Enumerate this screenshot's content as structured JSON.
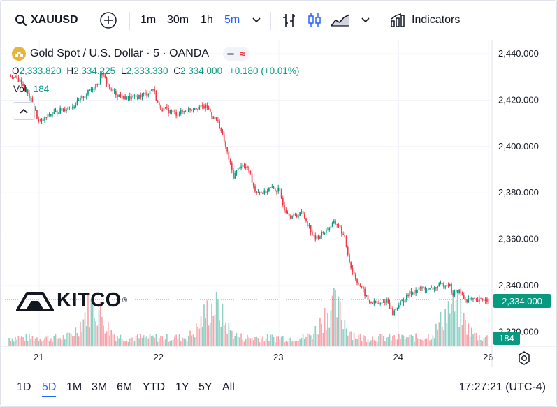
{
  "toolbar": {
    "symbol": "XAUUSD",
    "intervals": [
      "1m",
      "30m",
      "1h",
      "5m"
    ],
    "active_interval": "5m",
    "indicators_label": "Indicators",
    "icons": [
      "search-icon",
      "add-symbol-icon",
      "chevron-down-icon",
      "bar-chart-icon",
      "candle-chart-icon",
      "area-chart-icon",
      "indicators-icon"
    ]
  },
  "legend": {
    "title": "Gold Spot / U.S. Dollar · 5 · OANDA",
    "ohlc": {
      "o_key": "O",
      "o_val": "2,333.820",
      "h_key": "H",
      "h_val": "2,334.225",
      "l_key": "L",
      "l_val": "2,333.330",
      "c_key": "C",
      "c_val": "2,334.000",
      "change": "+0.180 (+0.01%)"
    },
    "vol_label": "Vol",
    "vol_value": "184"
  },
  "branding": {
    "logo_text": "KITCO",
    "logo_mark": "®"
  },
  "price_tag": "2,334.000",
  "volume_tag": "184",
  "chart_data": {
    "type": "candlestick",
    "title": "Gold Spot / U.S. Dollar · 5 · OANDA",
    "y_ticks": [
      "2,440.000",
      "2,420.000",
      "2,400.000",
      "2,380.000",
      "2,360.000",
      "2,340.000",
      "2,320.000"
    ],
    "y_tick_values": [
      2440,
      2420,
      2400,
      2380,
      2360,
      2340,
      2320
    ],
    "x_ticks": [
      "21",
      "22",
      "23",
      "24",
      "26"
    ],
    "x_tick_positions": [
      0.0,
      1.0,
      2.0,
      3.0,
      3.75
    ],
    "ylim": [
      2314,
      2458
    ],
    "current_price": 2334.0,
    "up_color": "#089981",
    "down_color": "#f23645",
    "series": [
      {
        "name": "price",
        "points": [
          [
            -0.25,
            2431
          ],
          [
            -0.15,
            2428
          ],
          [
            -0.05,
            2418
          ],
          [
            0.0,
            2410
          ],
          [
            0.1,
            2414
          ],
          [
            0.2,
            2416
          ],
          [
            0.3,
            2418
          ],
          [
            0.4,
            2423
          ],
          [
            0.5,
            2428
          ],
          [
            0.52,
            2432
          ],
          [
            0.6,
            2424
          ],
          [
            0.7,
            2421
          ],
          [
            0.8,
            2421
          ],
          [
            0.9,
            2423
          ],
          [
            0.95,
            2425
          ],
          [
            1.0,
            2417
          ],
          [
            1.05,
            2416
          ],
          [
            1.15,
            2414
          ],
          [
            1.3,
            2417
          ],
          [
            1.4,
            2417
          ],
          [
            1.45,
            2413
          ],
          [
            1.5,
            2410
          ],
          [
            1.58,
            2395
          ],
          [
            1.62,
            2387
          ],
          [
            1.68,
            2392
          ],
          [
            1.75,
            2390
          ],
          [
            1.8,
            2381
          ],
          [
            1.88,
            2380
          ],
          [
            1.92,
            2382
          ],
          [
            2.0,
            2381
          ],
          [
            2.05,
            2373
          ],
          [
            2.1,
            2370
          ],
          [
            2.15,
            2370
          ],
          [
            2.18,
            2372
          ],
          [
            2.22,
            2369
          ],
          [
            2.3,
            2360
          ],
          [
            2.4,
            2364
          ],
          [
            2.46,
            2367
          ],
          [
            2.5,
            2366
          ],
          [
            2.55,
            2360
          ],
          [
            2.6,
            2348
          ],
          [
            2.65,
            2342
          ],
          [
            2.7,
            2338
          ],
          [
            2.75,
            2333
          ],
          [
            2.85,
            2332
          ],
          [
            2.9,
            2334
          ],
          [
            2.95,
            2328
          ],
          [
            3.0,
            2332
          ],
          [
            3.05,
            2334
          ],
          [
            3.1,
            2337
          ],
          [
            3.15,
            2338
          ],
          [
            3.2,
            2339
          ],
          [
            3.25,
            2338
          ],
          [
            3.3,
            2339
          ],
          [
            3.35,
            2340
          ],
          [
            3.42,
            2341
          ],
          [
            3.45,
            2336
          ],
          [
            3.5,
            2338
          ],
          [
            3.55,
            2334
          ],
          [
            3.6,
            2334
          ],
          [
            3.65,
            2333
          ],
          [
            3.7,
            2334
          ],
          [
            3.75,
            2334
          ]
        ]
      }
    ],
    "volume": {
      "max_label": "184"
    }
  },
  "bottombar": {
    "ranges": [
      "1D",
      "5D",
      "1M",
      "3M",
      "6M",
      "YTD",
      "1Y",
      "5Y",
      "All"
    ],
    "active_range": "5D",
    "clock": "17:27:21 (UTC-4)"
  }
}
